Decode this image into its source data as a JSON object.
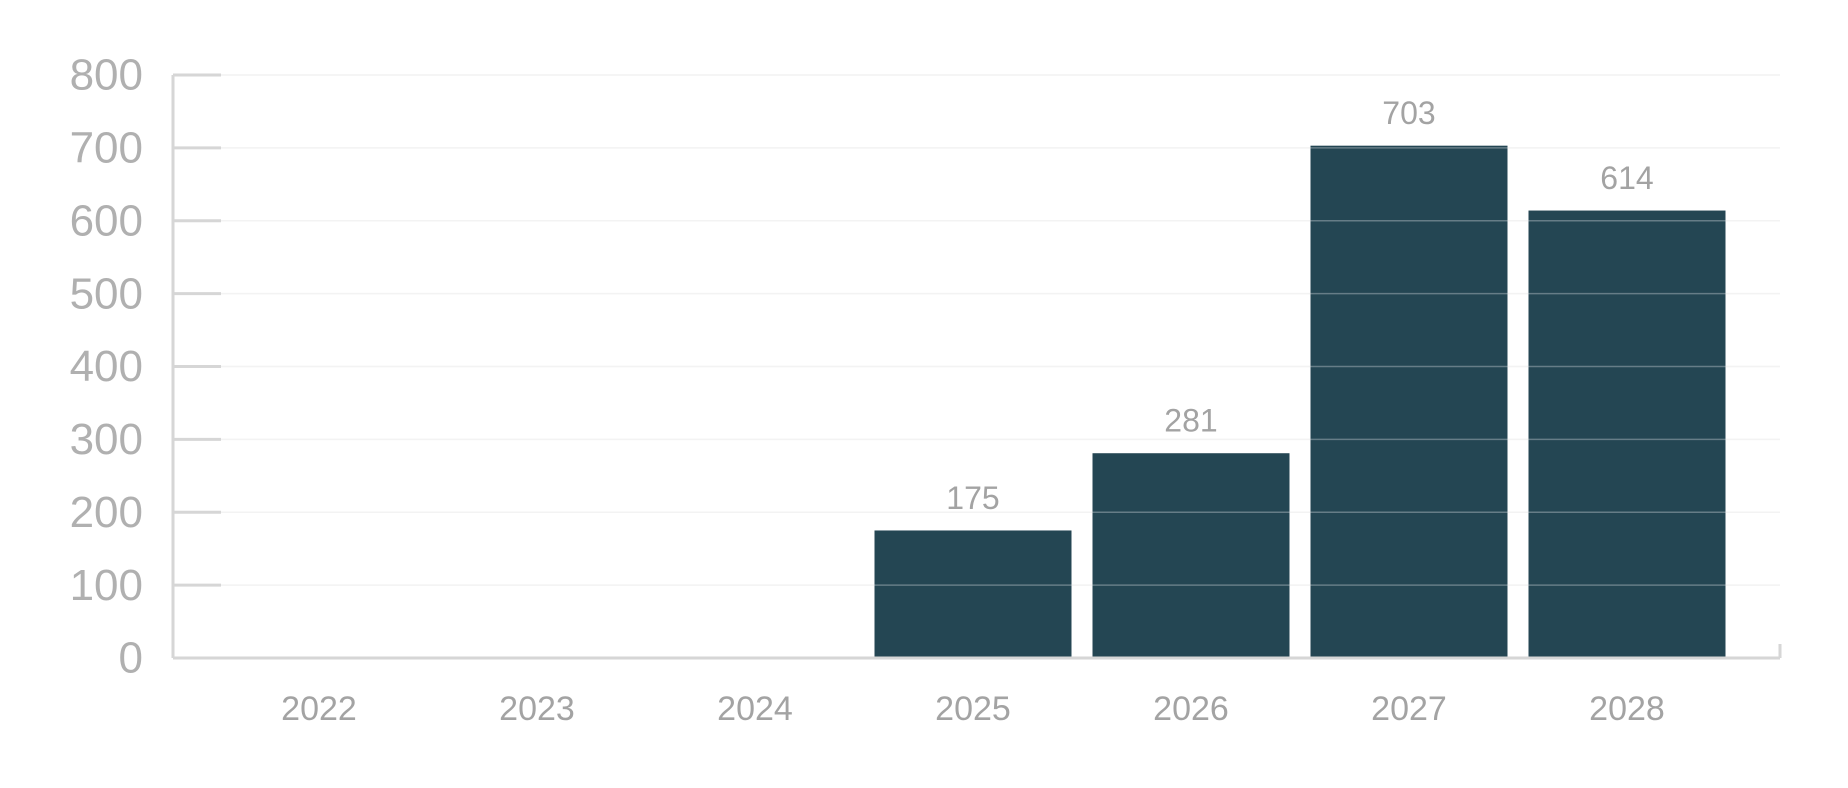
{
  "chart_data": {
    "type": "bar",
    "categories": [
      "2022",
      "2023",
      "2024",
      "2025",
      "2026",
      "2027",
      "2028"
    ],
    "values": [
      2,
      2,
      2,
      175,
      281,
      703,
      614
    ],
    "value_labels": [
      null,
      null,
      null,
      "175",
      "281",
      "703",
      "614"
    ],
    "color": "#244653",
    "ylim": [
      0,
      800
    ],
    "yticks": [
      0,
      100,
      200,
      300,
      400,
      500,
      600,
      700,
      800
    ],
    "grid": true
  }
}
